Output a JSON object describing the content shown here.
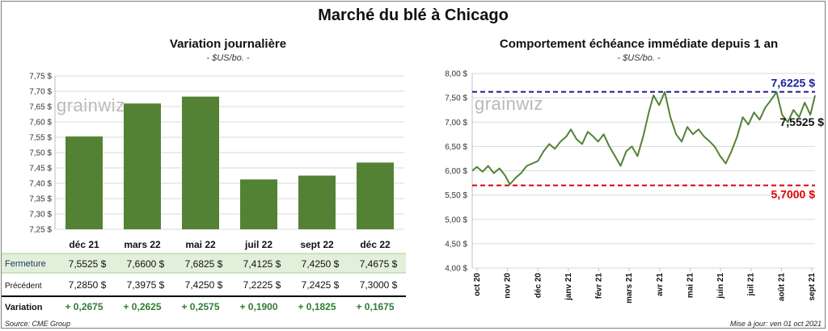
{
  "header": {
    "title": "Marché du blé à Chicago"
  },
  "left_chart": {
    "title": "Variation journalière",
    "subtitle": "- $US/bo. -",
    "watermark": "grainwiz",
    "rows": {
      "close_label": "Fermeture",
      "prev_label": "Précédent",
      "var_label": "Variation",
      "close": [
        "7,5525  $",
        "7,6600  $",
        "7,6825  $",
        "7,4125  $",
        "7,4250  $",
        "7,4675  $"
      ],
      "prev": [
        "7,2850  $",
        "7,3975  $",
        "7,4250  $",
        "7,2225  $",
        "7,2425  $",
        "7,3000  $"
      ],
      "var": [
        "+ 0,2675",
        "+ 0,2625",
        "+ 0,2575",
        "+ 0,1900",
        "+ 0,1825",
        "+ 0,1675"
      ]
    }
  },
  "right_chart": {
    "title": "Comportement  échéance immédiate depuis 1 an",
    "subtitle": "- $US/bo. -",
    "watermark": "grainwiz",
    "max_label": "7,6225 $",
    "min_label": "5,7000 $",
    "last_label": "7,5525 $"
  },
  "footer": {
    "source": "Source: CME Group",
    "updated": "Mise à jour: ven 01 oct 2021"
  },
  "chart_data": [
    {
      "type": "bar",
      "title": "Variation journalière",
      "subtitle": "- $US/bo. -",
      "categories": [
        "déc 21",
        "mars 22",
        "mai 22",
        "juil 22",
        "sept 22",
        "déc 22"
      ],
      "values": [
        7.5525,
        7.66,
        7.6825,
        7.4125,
        7.425,
        7.4675
      ],
      "ylim": [
        7.25,
        7.75
      ],
      "yticks": [
        7.25,
        7.3,
        7.35,
        7.4,
        7.45,
        7.5,
        7.55,
        7.6,
        7.65,
        7.7,
        7.75
      ],
      "ytick_labels": [
        "7,25 $",
        "7,30 $",
        "7,35 $",
        "7,40 $",
        "7,45 $",
        "7,50 $",
        "7,55 $",
        "7,60 $",
        "7,65 $",
        "7,70 $",
        "7,75 $"
      ],
      "color": "#548235",
      "grid": true
    },
    {
      "type": "line",
      "title": "Comportement  échéance immédiate depuis 1 an",
      "subtitle": "- $US/bo. -",
      "x_tick_labels": [
        "oct 20",
        "nov 20",
        "déc 20",
        "janv 21",
        "févr 21",
        "mars 21",
        "avr 21",
        "mai 21",
        "juin 21",
        "juil 21",
        "août 21",
        "sept 21"
      ],
      "ylim": [
        4.0,
        8.0
      ],
      "yticks": [
        4.0,
        4.5,
        5.0,
        5.5,
        6.0,
        6.5,
        7.0,
        7.5,
        8.0
      ],
      "ytick_labels": [
        "4,00 $",
        "4,50 $",
        "5,00 $",
        "5,50 $",
        "6,00 $",
        "6,50 $",
        "7,00 $",
        "7,50 $",
        "8,00 $"
      ],
      "x": [
        "2020-10-01",
        "2020-10-06",
        "2020-10-12",
        "2020-10-18",
        "2020-10-24",
        "2020-10-30",
        "2020-11-05",
        "2020-11-10",
        "2020-11-16",
        "2020-11-22",
        "2020-11-28",
        "2020-12-04",
        "2020-12-10",
        "2020-12-16",
        "2020-12-22",
        "2020-12-28",
        "2021-01-03",
        "2021-01-09",
        "2021-01-14",
        "2021-01-20",
        "2021-01-26",
        "2021-02-01",
        "2021-02-07",
        "2021-02-12",
        "2021-02-18",
        "2021-02-24",
        "2021-03-02",
        "2021-03-08",
        "2021-03-14",
        "2021-03-20",
        "2021-03-26",
        "2021-04-01",
        "2021-04-07",
        "2021-04-12",
        "2021-04-18",
        "2021-04-24",
        "2021-04-30",
        "2021-05-06",
        "2021-05-12",
        "2021-05-18",
        "2021-05-24",
        "2021-05-30",
        "2021-06-05",
        "2021-06-11",
        "2021-06-16",
        "2021-06-22",
        "2021-06-28",
        "2021-07-04",
        "2021-07-10",
        "2021-07-16",
        "2021-07-22",
        "2021-07-28",
        "2021-08-03",
        "2021-08-09",
        "2021-08-15",
        "2021-08-21",
        "2021-08-27",
        "2021-09-02",
        "2021-09-08",
        "2021-09-14",
        "2021-09-20",
        "2021-09-26",
        "2021-10-01"
      ],
      "series": [
        {
          "values": [
            6.0,
            6.08,
            5.98,
            6.1,
            5.95,
            6.05,
            5.9,
            5.72,
            5.85,
            5.95,
            6.1,
            6.15,
            6.2,
            6.4,
            6.55,
            6.45,
            6.6,
            6.7,
            6.85,
            6.65,
            6.55,
            6.8,
            6.7,
            6.6,
            6.75,
            6.5,
            6.3,
            6.1,
            6.4,
            6.5,
            6.3,
            6.7,
            7.2,
            7.55,
            7.35,
            7.62,
            7.1,
            6.75,
            6.6,
            6.9,
            6.75,
            6.85,
            6.7,
            6.6,
            6.5,
            6.3,
            6.15,
            6.4,
            6.7,
            7.1,
            6.95,
            7.2,
            7.05,
            7.3,
            7.45,
            7.62,
            7.15,
            7.0,
            7.25,
            7.1,
            7.4,
            7.15,
            7.55
          ]
        }
      ],
      "ref_lines": [
        {
          "value": 7.6225,
          "label": "7,6225 $",
          "color": "#1f1fa0"
        },
        {
          "value": 5.7,
          "label": "5,7000 $",
          "color": "#e00000"
        }
      ],
      "last_value": 7.5525,
      "color": "#548235",
      "grid": true
    }
  ]
}
